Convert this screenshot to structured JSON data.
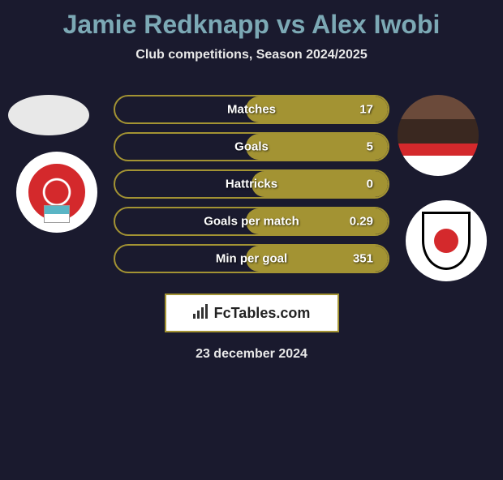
{
  "title": "Jamie Redknapp vs Alex Iwobi",
  "subtitle": "Club competitions, Season 2024/2025",
  "stats": [
    {
      "label": "Matches",
      "value": "17",
      "fill_pct": 52
    },
    {
      "label": "Goals",
      "value": "5",
      "fill_pct": 52
    },
    {
      "label": "Hattricks",
      "value": "0",
      "fill_pct": 50
    },
    {
      "label": "Goals per match",
      "value": "0.29",
      "fill_pct": 52
    },
    {
      "label": "Min per goal",
      "value": "351",
      "fill_pct": 52
    }
  ],
  "brand": "FcTables.com",
  "date": "23 december 2024",
  "colors": {
    "background": "#1a1a2e",
    "title_color": "#7ca9b5",
    "bar_border": "#a39333",
    "bar_fill": "#a39333",
    "text": "#e8e8e8"
  },
  "typography": {
    "title_fontsize": 32,
    "subtitle_fontsize": 16,
    "stat_fontsize": 15,
    "date_fontsize": 16
  }
}
